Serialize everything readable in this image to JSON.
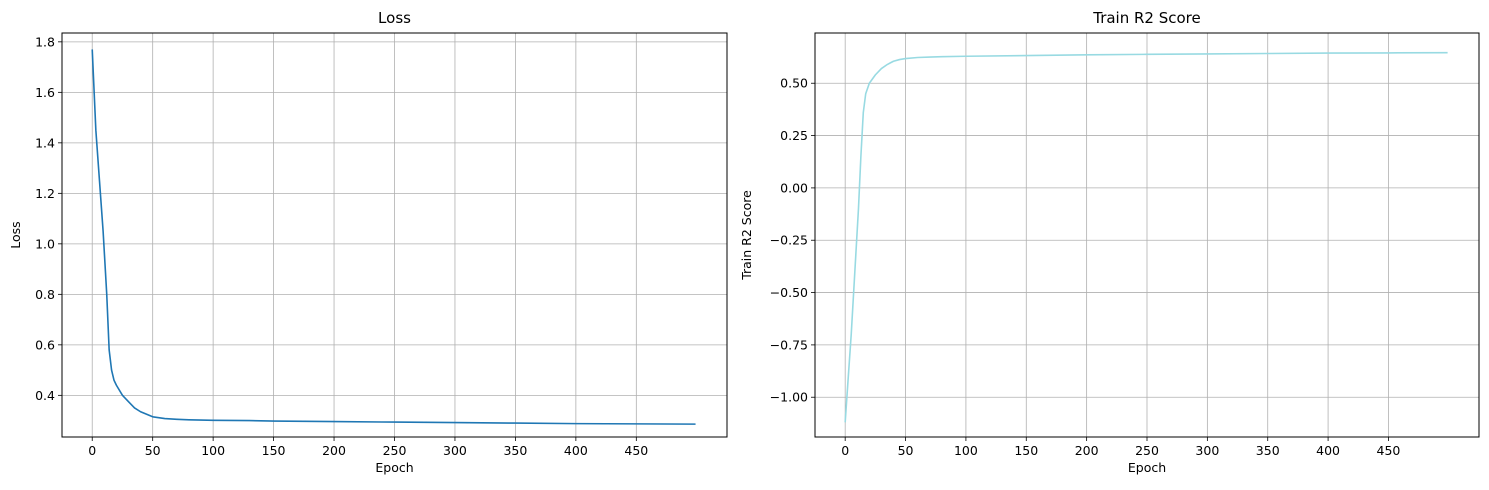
{
  "chart_data": [
    {
      "type": "line",
      "title": "Loss",
      "xlabel": "Epoch",
      "ylabel": "Loss",
      "xlim": [
        -25,
        525
      ],
      "ylim": [
        0.235,
        1.835
      ],
      "xticks": [
        0,
        50,
        100,
        150,
        200,
        250,
        300,
        350,
        400,
        450
      ],
      "yticks": [
        0.4,
        0.6,
        0.8,
        1.0,
        1.2,
        1.4,
        1.6,
        1.8
      ],
      "ytick_labels": [
        "0.4",
        "0.6",
        "0.8",
        "1.0",
        "1.2",
        "1.4",
        "1.6",
        "1.8"
      ],
      "grid": true,
      "color": "#1f77b4",
      "series": [
        {
          "x": [
            0,
            3,
            6,
            9,
            12,
            14,
            16,
            18,
            20,
            25,
            30,
            35,
            40,
            45,
            50,
            60,
            70,
            80,
            100,
            130,
            150,
            200,
            250,
            300,
            350,
            400,
            450,
            499
          ],
          "y": [
            1.77,
            1.45,
            1.25,
            1.05,
            0.8,
            0.58,
            0.5,
            0.46,
            0.44,
            0.4,
            0.375,
            0.35,
            0.335,
            0.325,
            0.315,
            0.308,
            0.305,
            0.303,
            0.301,
            0.3,
            0.298,
            0.296,
            0.294,
            0.292,
            0.29,
            0.288,
            0.287,
            0.286
          ]
        }
      ]
    },
    {
      "type": "line",
      "title": "Train R2 Score",
      "xlabel": "Epoch",
      "ylabel": "Train R2 Score",
      "xlim": [
        -25,
        525
      ],
      "ylim": [
        -1.19,
        0.74
      ],
      "xticks": [
        0,
        50,
        100,
        150,
        200,
        250,
        300,
        350,
        400,
        450
      ],
      "yticks": [
        -1.0,
        -0.75,
        -0.5,
        -0.25,
        0.0,
        0.25,
        0.5
      ],
      "ytick_labels": [
        "−1.00",
        "−0.75",
        "−0.50",
        "−0.25",
        "0.00",
        "0.25",
        "0.50"
      ],
      "grid": true,
      "color": "#98dae2",
      "series": [
        {
          "x": [
            0,
            2,
            5,
            8,
            11,
            13,
            15,
            17,
            20,
            25,
            30,
            35,
            40,
            45,
            50,
            60,
            70,
            80,
            100,
            150,
            200,
            250,
            300,
            350,
            400,
            450,
            499
          ],
          "y": [
            -1.12,
            -0.95,
            -0.7,
            -0.4,
            -0.1,
            0.15,
            0.36,
            0.45,
            0.5,
            0.54,
            0.57,
            0.59,
            0.605,
            0.613,
            0.618,
            0.623,
            0.625,
            0.627,
            0.629,
            0.632,
            0.636,
            0.638,
            0.64,
            0.642,
            0.644,
            0.645,
            0.646
          ]
        }
      ]
    }
  ]
}
